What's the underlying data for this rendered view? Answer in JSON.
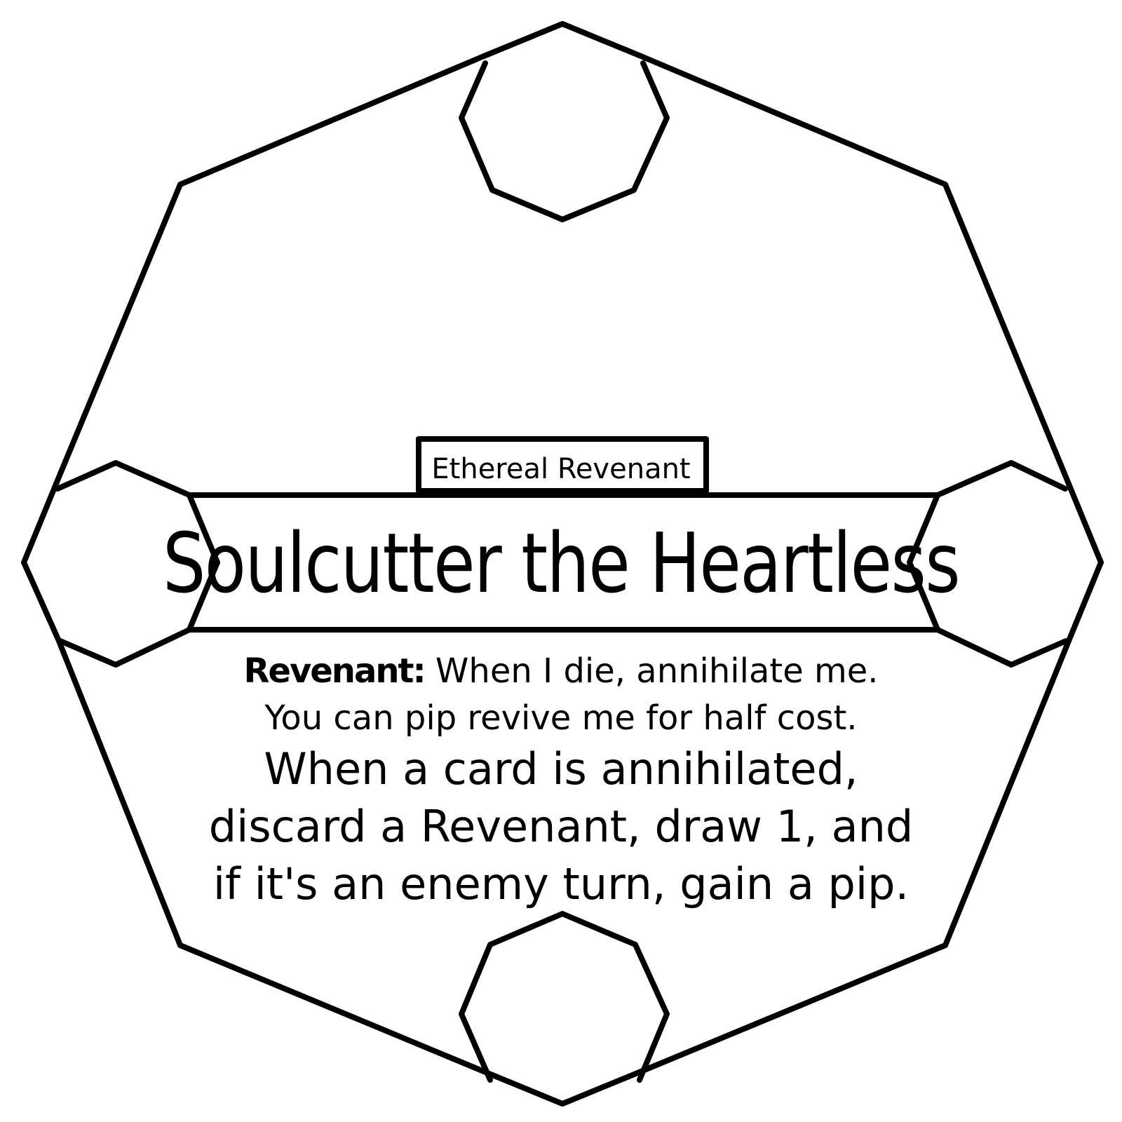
{
  "card": {
    "type_label": "Ethereal Revenant",
    "name": "Soulcutter the Heartless",
    "keyword": {
      "name": "Revenant:",
      "text_line_1": " When I die, annihilate me.",
      "text_line_2": "You can pip revive me for half cost."
    },
    "effect_lines": [
      "When a card is annihilated,",
      "discard a Revenant, draw 1, and",
      "if it's an enemy turn, gain a pip."
    ]
  },
  "colors": {
    "background": "#ffffff",
    "ink": "#000000"
  }
}
